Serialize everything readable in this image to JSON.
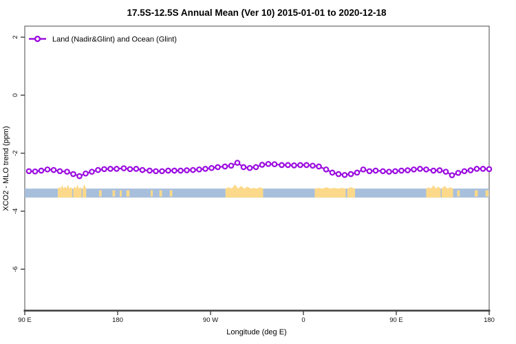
{
  "title": "17.5S-12.5S Annual Mean (Ver 10)   2015-01-01 to 2020-12-18",
  "legend": {
    "label": "Land (Nadir&Glint) and Ocean (Glint)",
    "marker": "open-circle"
  },
  "colors": {
    "series": "#9c0fe0",
    "ocean_strip": "#a8bfdc",
    "land_strip": "#fcd98a",
    "axis": "#3b3b3b",
    "tick": "#404040",
    "text": "#000000"
  },
  "chart_data": {
    "type": "line",
    "title": "17.5S-12.5S Annual Mean (Ver 10)   2015-01-01 to 2020-12-18",
    "xlabel": "Longitude (deg E)",
    "ylabel": "XCO2 - MLO trend (ppm)",
    "xlim": [
      90,
      540
    ],
    "ylim": [
      -7.44,
      2.38
    ],
    "grid": false,
    "legend_position": "top-left",
    "x_ticks": [
      {
        "lon": 90,
        "label": "90 E"
      },
      {
        "lon": 180,
        "label": "180"
      },
      {
        "lon": 270,
        "label": "90 W"
      },
      {
        "lon": 360,
        "label": "0"
      },
      {
        "lon": 450,
        "label": "90 E"
      },
      {
        "lon": 540,
        "label": "180"
      }
    ],
    "y_ticks": [
      {
        "value": 2,
        "label": "2"
      },
      {
        "value": 0,
        "label": "0"
      },
      {
        "value": -2,
        "label": "-2"
      },
      {
        "value": -4,
        "label": "-4"
      },
      {
        "value": -6,
        "label": "-6"
      }
    ],
    "series": [
      {
        "name": "Land (Nadir&Glint) and Ocean (Glint)",
        "marker": "open-circle",
        "points": [
          [
            94,
            -2.62
          ],
          [
            100,
            -2.63
          ],
          [
            106,
            -2.6
          ],
          [
            112,
            -2.56
          ],
          [
            118,
            -2.58
          ],
          [
            124,
            -2.62
          ],
          [
            131,
            -2.64
          ],
          [
            137,
            -2.72
          ],
          [
            143,
            -2.79
          ],
          [
            149,
            -2.7
          ],
          [
            155,
            -2.64
          ],
          [
            161,
            -2.58
          ],
          [
            167,
            -2.55
          ],
          [
            173,
            -2.54
          ],
          [
            179,
            -2.54
          ],
          [
            186,
            -2.52
          ],
          [
            192,
            -2.55
          ],
          [
            198,
            -2.54
          ],
          [
            204,
            -2.58
          ],
          [
            211,
            -2.6
          ],
          [
            217,
            -2.62
          ],
          [
            223,
            -2.62
          ],
          [
            229,
            -2.6
          ],
          [
            235,
            -2.6
          ],
          [
            241,
            -2.6
          ],
          [
            247,
            -2.59
          ],
          [
            253,
            -2.58
          ],
          [
            259,
            -2.56
          ],
          [
            265,
            -2.54
          ],
          [
            271,
            -2.51
          ],
          [
            277,
            -2.48
          ],
          [
            284,
            -2.46
          ],
          [
            290,
            -2.43
          ],
          [
            296,
            -2.33
          ],
          [
            302,
            -2.48
          ],
          [
            308,
            -2.51
          ],
          [
            314,
            -2.48
          ],
          [
            320,
            -2.4
          ],
          [
            326,
            -2.37
          ],
          [
            332,
            -2.38
          ],
          [
            339,
            -2.41
          ],
          [
            345,
            -2.41
          ],
          [
            351,
            -2.42
          ],
          [
            357,
            -2.41
          ],
          [
            363,
            -2.41
          ],
          [
            369,
            -2.43
          ],
          [
            375,
            -2.46
          ],
          [
            382,
            -2.56
          ],
          [
            388,
            -2.67
          ],
          [
            394,
            -2.72
          ],
          [
            400,
            -2.75
          ],
          [
            406,
            -2.72
          ],
          [
            412,
            -2.67
          ],
          [
            418,
            -2.56
          ],
          [
            424,
            -2.62
          ],
          [
            430,
            -2.6
          ],
          [
            437,
            -2.62
          ],
          [
            443,
            -2.64
          ],
          [
            449,
            -2.62
          ],
          [
            455,
            -2.6
          ],
          [
            461,
            -2.59
          ],
          [
            467,
            -2.56
          ],
          [
            473,
            -2.54
          ],
          [
            479,
            -2.56
          ],
          [
            486,
            -2.6
          ],
          [
            492,
            -2.59
          ],
          [
            498,
            -2.64
          ],
          [
            504,
            -2.76
          ],
          [
            510,
            -2.68
          ],
          [
            516,
            -2.62
          ],
          [
            522,
            -2.59
          ],
          [
            528,
            -2.54
          ],
          [
            534,
            -2.54
          ],
          [
            540,
            -2.55
          ]
        ]
      }
    ],
    "map_strip": {
      "description": "ocean/land strip for latitude band 17.5S-12.5S",
      "value_top": -3.22,
      "value_bottom": -3.53,
      "land_segments": [
        {
          "from": 122,
          "to": 136,
          "profile": [
            2,
            5,
            3,
            6,
            2
          ]
        },
        {
          "from": 137,
          "to": 145,
          "profile": [
            3,
            6,
            2
          ]
        },
        {
          "from": 146,
          "to": 149.5,
          "profile": [
            6
          ]
        },
        {
          "from": 162,
          "to": 164.5,
          "profile": [
            0
          ]
        },
        {
          "from": 175,
          "to": 177.5,
          "profile": [
            0
          ]
        },
        {
          "from": 182,
          "to": 184,
          "profile": [
            0
          ]
        },
        {
          "from": 188.5,
          "to": 191.5,
          "profile": [
            0
          ]
        },
        {
          "from": 212,
          "to": 214,
          "profile": [
            0
          ]
        },
        {
          "from": 220.5,
          "to": 223,
          "profile": [
            0
          ]
        },
        {
          "from": 230.5,
          "to": 233,
          "profile": [
            0
          ]
        },
        {
          "from": 284.5,
          "to": 321,
          "profile": [
            2,
            6,
            4,
            3,
            1,
            2
          ]
        },
        {
          "from": 371,
          "to": 401,
          "profile": [
            1,
            2,
            1,
            1
          ]
        },
        {
          "from": 402.5,
          "to": 410,
          "profile": [
            2
          ]
        },
        {
          "from": 479,
          "to": 493,
          "profile": [
            2,
            5,
            3
          ]
        },
        {
          "from": 494,
          "to": 505,
          "profile": [
            4,
            2
          ]
        },
        {
          "from": 509,
          "to": 511.5,
          "profile": [
            0
          ]
        },
        {
          "from": 526,
          "to": 529,
          "profile": [
            0
          ]
        },
        {
          "from": 536.5,
          "to": 539.5,
          "profile": [
            0
          ]
        }
      ]
    }
  }
}
